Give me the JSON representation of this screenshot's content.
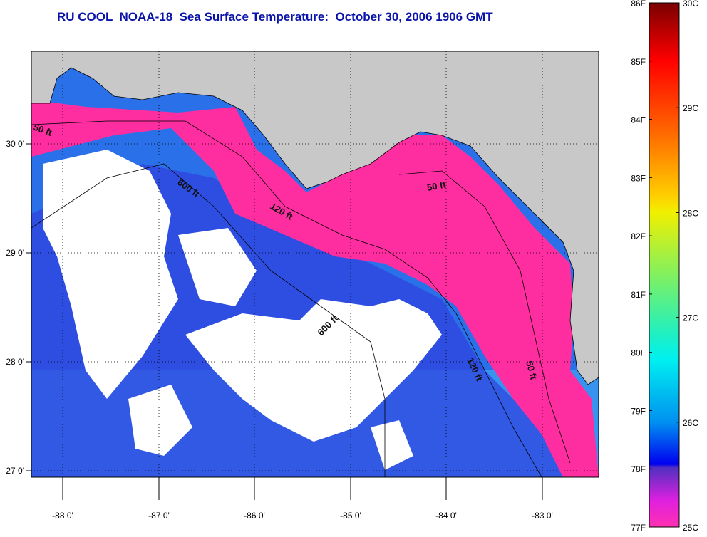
{
  "title": "RU COOL  NOAA-18  Sea Surface Temperature:  October 30, 2006 1906 GMT",
  "map": {
    "lat_labels": [
      "30 0'",
      "29 0'",
      "28 0'",
      "27 0'"
    ],
    "lon_labels": [
      "-88 0'",
      "-87 0'",
      "-86 0'",
      "-85 0'",
      "-84 0'",
      "-83 0'"
    ],
    "contour_labels": [
      "50 ft",
      "600 ft",
      "120 ft",
      "50 ft",
      "600 ft",
      "120 ft",
      "50 ft"
    ]
  },
  "colorbar": {
    "f_labels": [
      "86F",
      "85F",
      "84F",
      "83F",
      "82F",
      "81F",
      "80F",
      "79F",
      "78F",
      "77F"
    ],
    "c_labels": [
      "30C",
      "29C",
      "28C",
      "27C",
      "26C",
      "25C"
    ],
    "land_color": "#c8c8c8",
    "cloud_color": "#ffffff",
    "min_f": 77,
    "max_f": 86
  }
}
